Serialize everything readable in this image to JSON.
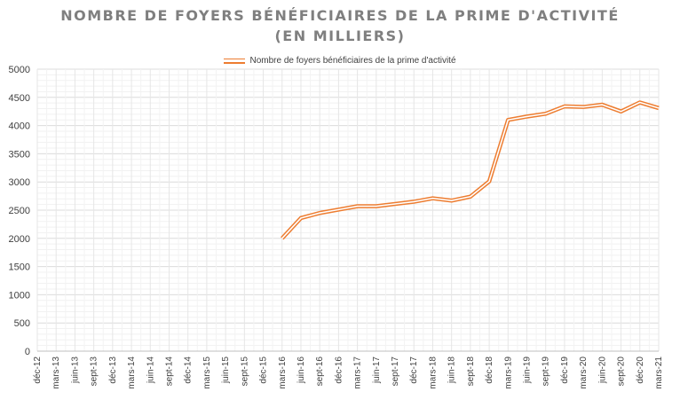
{
  "chart_data": {
    "type": "line",
    "title_line1": "NOMBRE DE FOYERS BÉNÉFICIAIRES DE LA PRIME D'ACTIVITÉ",
    "title_line2": "(EN MILLIERS)",
    "legend": "Nombre de foyers bénéficiaires de la prime d'activité",
    "legend_position": "top",
    "line_color": "#ed7d31",
    "grid": true,
    "ylim": [
      0,
      5000
    ],
    "yticks": [
      0,
      500,
      1000,
      1500,
      2000,
      2500,
      3000,
      3500,
      4000,
      4500,
      5000
    ],
    "categories": [
      "déc-12",
      "mars-13",
      "juin-13",
      "sept-13",
      "déc-13",
      "mars-14",
      "juin-14",
      "sept-14",
      "déc-14",
      "mars-15",
      "juin-15",
      "sept-15",
      "déc-15",
      "mars-16",
      "juin-16",
      "sept-16",
      "déc-16",
      "mars-17",
      "juin-17",
      "sept-17",
      "déc-17",
      "mars-18",
      "juin-18",
      "sept-18",
      "déc-18",
      "mars-19",
      "juin-19",
      "sept-19",
      "déc-19",
      "mars-20",
      "juin-20",
      "sept-20",
      "déc-20",
      "mars-21"
    ],
    "series": [
      {
        "name": "Nombre de foyers bénéficiaires de la prime d'activité",
        "values": [
          null,
          null,
          null,
          null,
          null,
          null,
          null,
          null,
          null,
          null,
          null,
          null,
          null,
          2000,
          2360,
          2450,
          2510,
          2570,
          2570,
          2610,
          2650,
          2710,
          2670,
          2740,
          3010,
          4100,
          4160,
          4210,
          4340,
          4330,
          4370,
          4250,
          4410,
          4310
        ]
      }
    ]
  }
}
